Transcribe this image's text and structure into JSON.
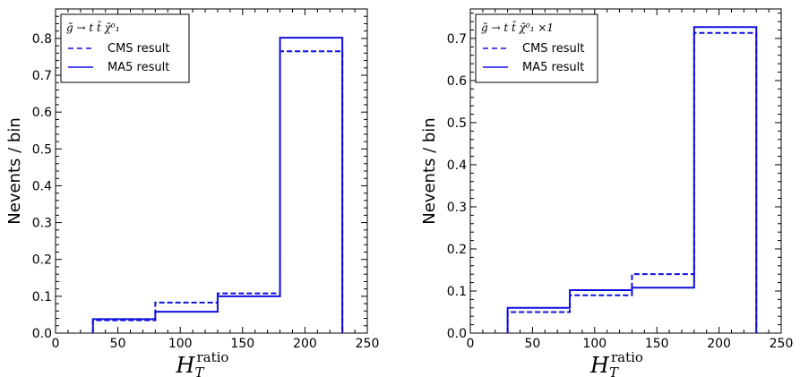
{
  "colors": {
    "series": "#1010e0",
    "axes": "#000000",
    "background": "#ffffff"
  },
  "chart_data": [
    {
      "type": "step",
      "ylabel": "Nevents / bin",
      "xlabel_main": "H",
      "xlabel_sub": "T",
      "xlabel_sup": "ratio",
      "xlim": [
        0,
        250
      ],
      "ylim": [
        0,
        0.88
      ],
      "xticks": [
        0,
        50,
        100,
        150,
        200,
        250
      ],
      "yticks": [
        0.0,
        0.1,
        0.2,
        0.3,
        0.4,
        0.5,
        0.6,
        0.7,
        0.8
      ],
      "legend": {
        "title": "g̃ → t t̄ χ̃⁰₁",
        "placement": "top-left",
        "entries": [
          {
            "label": "CMS result",
            "style": "dashed"
          },
          {
            "label": "MA5 result",
            "style": "solid"
          }
        ]
      },
      "bin_edges": [
        30,
        80,
        130,
        180,
        230
      ],
      "series": [
        {
          "name": "CMS result",
          "style": "dashed",
          "values": [
            0.035,
            0.083,
            0.108,
            0.765
          ]
        },
        {
          "name": "MA5 result",
          "style": "solid",
          "values": [
            0.038,
            0.058,
            0.1,
            0.802
          ]
        }
      ]
    },
    {
      "type": "step",
      "ylabel": "Nevents / bin",
      "xlabel_main": "H",
      "xlabel_sub": "T",
      "xlabel_sup": "ratio",
      "xlim": [
        0,
        250
      ],
      "ylim": [
        0,
        0.77
      ],
      "xticks": [
        0,
        50,
        100,
        150,
        200,
        250
      ],
      "yticks": [
        0.0,
        0.1,
        0.2,
        0.3,
        0.4,
        0.5,
        0.6,
        0.7
      ],
      "legend": {
        "title": "g̃ → t t̄ χ̃⁰₁ ×1",
        "placement": "top-left",
        "entries": [
          {
            "label": "CMS result",
            "style": "dashed"
          },
          {
            "label": "MA5 result",
            "style": "solid"
          }
        ]
      },
      "bin_edges": [
        30,
        80,
        130,
        180,
        230
      ],
      "series": [
        {
          "name": "CMS result",
          "style": "dashed",
          "values": [
            0.05,
            0.09,
            0.14,
            0.713
          ]
        },
        {
          "name": "MA5 result",
          "style": "solid",
          "values": [
            0.06,
            0.102,
            0.108,
            0.727
          ]
        }
      ]
    }
  ]
}
